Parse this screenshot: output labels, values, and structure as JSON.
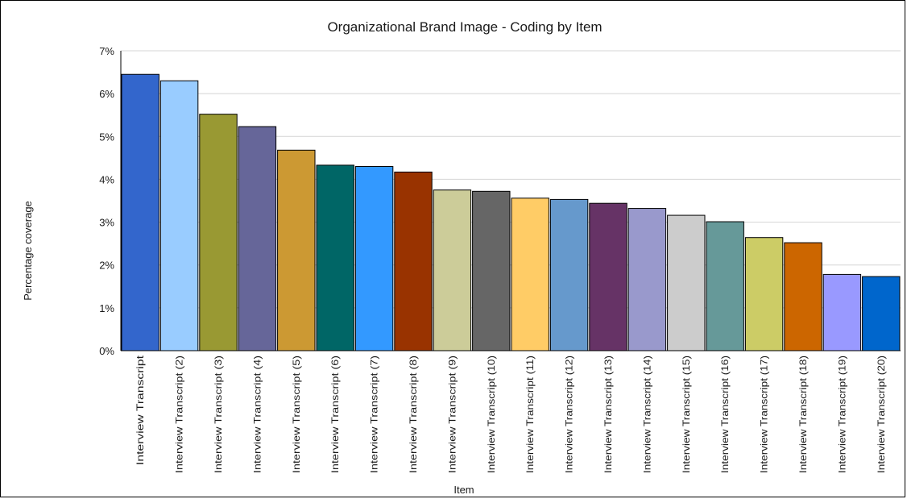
{
  "chart_data": {
    "type": "bar",
    "title": "Organizational Brand Image - Coding by Item",
    "xlabel": "Item",
    "ylabel": "Percentage coverage",
    "ylim": [
      0,
      7
    ],
    "yticks": [
      "0%",
      "1%",
      "2%",
      "3%",
      "4%",
      "5%",
      "6%",
      "7%"
    ],
    "grid": true,
    "categories": [
      "Interview Transcript",
      "Interview Transcript (2)",
      "Interview Transcript (3)",
      "Interview Transcript (4)",
      "Interview Transcript (5)",
      "Interview Transcript (6)",
      "Interview Transcript (7)",
      "Interview Transcript (8)",
      "Interview Transcript (9)",
      "Interview Transcript (10)",
      "Interview Transcript (11)",
      "Interview Transcript (12)",
      "Interview Transcript (13)",
      "Interview Transcript (14)",
      "Interview Transcript (15)",
      "Interview Transcript (16)",
      "Interview Transcript (17)",
      "Interview Transcript (18)",
      "Interview Transcript (19)",
      "Interview Transcript (20)"
    ],
    "values": [
      6.45,
      6.3,
      5.52,
      5.23,
      4.68,
      4.33,
      4.3,
      4.17,
      3.75,
      3.72,
      3.56,
      3.53,
      3.44,
      3.32,
      3.16,
      3.01,
      2.64,
      2.52,
      1.78,
      1.73
    ],
    "colors": [
      "#3366cc",
      "#99ccff",
      "#999933",
      "#666699",
      "#cc9933",
      "#006666",
      "#3399ff",
      "#993300",
      "#cccc99",
      "#666666",
      "#ffcc66",
      "#6699cc",
      "#663366",
      "#9999cc",
      "#cccccc",
      "#669999",
      "#cccc66",
      "#cc6600",
      "#9999ff",
      "#0066cc"
    ]
  }
}
